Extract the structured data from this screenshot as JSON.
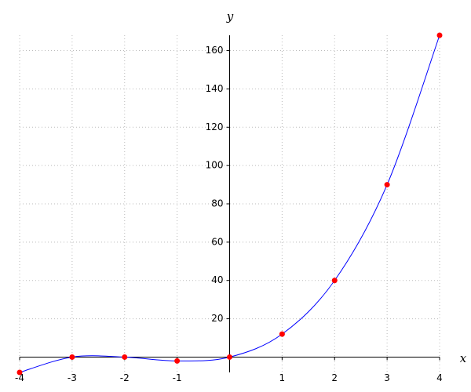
{
  "chart_data": {
    "type": "line",
    "x_label": "x",
    "y_label": "y",
    "x": [
      -4,
      -3,
      -2,
      -1,
      0,
      1,
      2,
      3,
      4
    ],
    "series": [
      {
        "color": "#0000ff",
        "marker_color": "#ff0000",
        "values": [
          -8,
          0,
          0,
          -2,
          0,
          12,
          40,
          90,
          168
        ]
      }
    ],
    "xlim": [
      -4,
      4
    ],
    "ylim": [
      -8,
      168
    ],
    "xticks": [
      -4,
      -3,
      -2,
      -1,
      1,
      2,
      3,
      4
    ],
    "yticks": [
      20,
      40,
      60,
      80,
      100,
      120,
      140,
      160
    ],
    "grid": true
  }
}
